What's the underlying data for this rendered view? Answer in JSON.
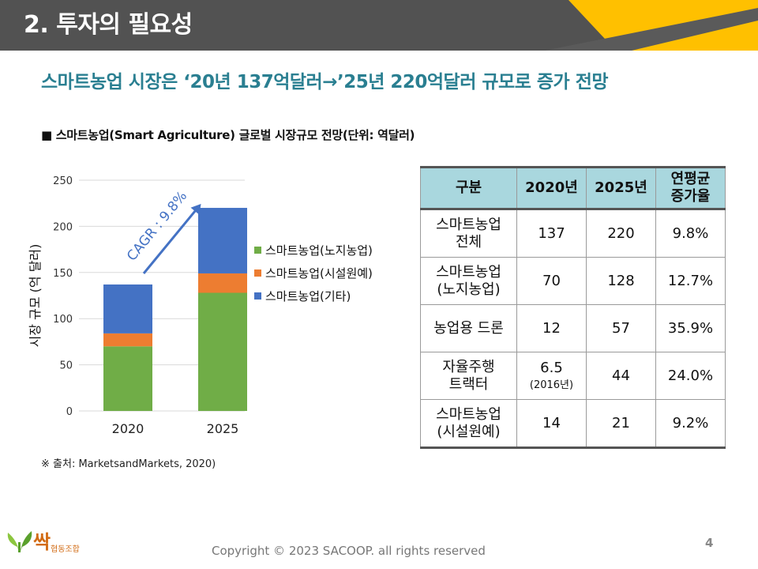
{
  "header": {
    "title": "2. 투자의 필요성",
    "colors": {
      "band": "#525252",
      "accent": "#ffc000"
    }
  },
  "headline": "스마트농업 시장은 ‘20년 137억달러→’25년 220억달러 규모로 증가 전망",
  "subheading": "■ 스마트농업(Smart Agriculture) 글로벌 시장규모 전망(단위: 역달러)",
  "chart_data": {
    "type": "bar",
    "stacked": true,
    "categories": [
      "2020",
      "2025"
    ],
    "series": [
      {
        "name": "스마트농업(노지농업)",
        "values": [
          70,
          128
        ],
        "color": "#70ad47"
      },
      {
        "name": "스마트농업(시설원예)",
        "values": [
          14,
          21
        ],
        "color": "#ed7d31"
      },
      {
        "name": "스마트농업(기타)",
        "values": [
          53,
          71
        ],
        "color": "#4472c4"
      }
    ],
    "ylabel": "시장 규모 (억 달러)",
    "ylim": [
      0,
      250
    ],
    "yticks": [
      0,
      50,
      100,
      150,
      200,
      250
    ],
    "grid": true,
    "legend": "right",
    "annotation": "CAGR : 9.8%"
  },
  "table": {
    "headers": [
      "구분",
      "2020년",
      "2025년",
      "연평균\n증가율"
    ],
    "rows": [
      {
        "label": "스마트농업\n전체",
        "v2020": "137",
        "v2020_note": "",
        "v2025": "220",
        "cagr": "9.8%"
      },
      {
        "label": "스마트농업\n(노지농업)",
        "v2020": "70",
        "v2020_note": "",
        "v2025": "128",
        "cagr": "12.7%"
      },
      {
        "label": "농업용 드론",
        "v2020": "12",
        "v2020_note": "",
        "v2025": "57",
        "cagr": "35.9%"
      },
      {
        "label": "자율주행\n트랙터",
        "v2020": "6.5",
        "v2020_note": "(2016년)",
        "v2025": "44",
        "cagr": "24.0%"
      },
      {
        "label": "스마트농업\n(시설원예)",
        "v2020": "14",
        "v2020_note": "",
        "v2025": "21",
        "cagr": "9.2%"
      }
    ]
  },
  "source": "※ 출처: MarketsandMarkets, 2020)",
  "footer": {
    "copyright": "Copyright © 2023 SACOOP. all rights reserved",
    "page_number": "4",
    "logo_main": "싹",
    "logo_sub": "협동조합"
  }
}
